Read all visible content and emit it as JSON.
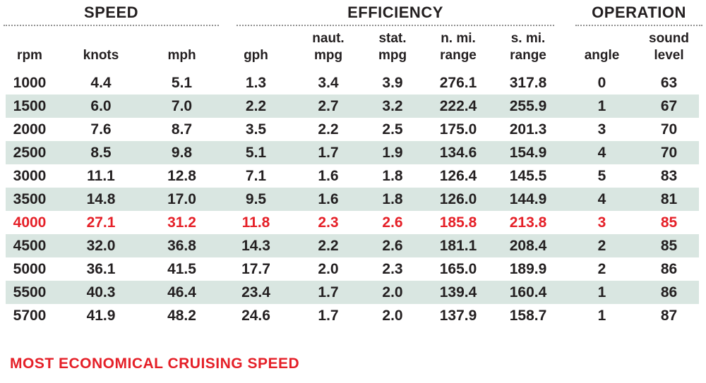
{
  "chart_data": {
    "type": "table",
    "sections": [
      {
        "label": "SPEED",
        "columns": [
          "rpm",
          "knots",
          "mph"
        ]
      },
      {
        "label": "EFFICIENCY",
        "columns": [
          "gph",
          "naut. mpg",
          "stat. mpg",
          "n. mi. range",
          "s. mi. range"
        ]
      },
      {
        "label": "OPERATION",
        "columns": [
          "angle",
          "sound level"
        ]
      }
    ],
    "column_headers": [
      [
        "",
        "rpm"
      ],
      [
        "",
        "knots"
      ],
      [
        "",
        "mph"
      ],
      [
        "",
        "gph"
      ],
      [
        "naut.",
        "mpg"
      ],
      [
        "stat.",
        "mpg"
      ],
      [
        "n. mi.",
        "range"
      ],
      [
        "s. mi.",
        "range"
      ],
      [
        "",
        "angle"
      ],
      [
        "sound",
        "level"
      ]
    ],
    "rows": [
      {
        "values": [
          "1000",
          "4.4",
          "5.1",
          "1.3",
          "3.4",
          "3.9",
          "276.1",
          "317.8",
          "0",
          "63"
        ],
        "shaded": false,
        "most_economical": false
      },
      {
        "values": [
          "1500",
          "6.0",
          "7.0",
          "2.2",
          "2.7",
          "3.2",
          "222.4",
          "255.9",
          "1",
          "67"
        ],
        "shaded": true,
        "most_economical": false
      },
      {
        "values": [
          "2000",
          "7.6",
          "8.7",
          "3.5",
          "2.2",
          "2.5",
          "175.0",
          "201.3",
          "3",
          "70"
        ],
        "shaded": false,
        "most_economical": false
      },
      {
        "values": [
          "2500",
          "8.5",
          "9.8",
          "5.1",
          "1.7",
          "1.9",
          "134.6",
          "154.9",
          "4",
          "70"
        ],
        "shaded": true,
        "most_economical": false
      },
      {
        "values": [
          "3000",
          "11.1",
          "12.8",
          "7.1",
          "1.6",
          "1.8",
          "126.4",
          "145.5",
          "5",
          "83"
        ],
        "shaded": false,
        "most_economical": false
      },
      {
        "values": [
          "3500",
          "14.8",
          "17.0",
          "9.5",
          "1.6",
          "1.8",
          "126.0",
          "144.9",
          "4",
          "81"
        ],
        "shaded": true,
        "most_economical": false
      },
      {
        "values": [
          "4000",
          "27.1",
          "31.2",
          "11.8",
          "2.3",
          "2.6",
          "185.8",
          "213.8",
          "3",
          "85"
        ],
        "shaded": false,
        "most_economical": true
      },
      {
        "values": [
          "4500",
          "32.0",
          "36.8",
          "14.3",
          "2.2",
          "2.6",
          "181.1",
          "208.4",
          "2",
          "85"
        ],
        "shaded": true,
        "most_economical": false
      },
      {
        "values": [
          "5000",
          "36.1",
          "41.5",
          "17.7",
          "2.0",
          "2.3",
          "165.0",
          "189.9",
          "2",
          "86"
        ],
        "shaded": false,
        "most_economical": false
      },
      {
        "values": [
          "5500",
          "40.3",
          "46.4",
          "23.4",
          "1.7",
          "2.0",
          "139.4",
          "160.4",
          "1",
          "86"
        ],
        "shaded": true,
        "most_economical": false
      },
      {
        "values": [
          "5700",
          "41.9",
          "48.2",
          "24.6",
          "1.7",
          "2.0",
          "137.9",
          "158.7",
          "1",
          "87"
        ],
        "shaded": false,
        "most_economical": false
      }
    ],
    "footer_note": "MOST ECONOMICAL CRUISING SPEED"
  },
  "colors": {
    "accent_red": "#e52028",
    "row_shade": "#d9e6e1",
    "text": "#231f20",
    "rule": "#909090"
  }
}
